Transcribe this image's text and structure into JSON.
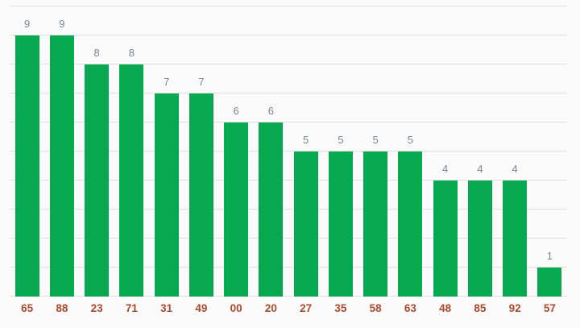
{
  "chart_data": {
    "type": "bar",
    "categories": [
      "65",
      "88",
      "23",
      "71",
      "31",
      "49",
      "00",
      "20",
      "27",
      "35",
      "58",
      "63",
      "48",
      "85",
      "92",
      "57"
    ],
    "values": [
      9,
      9,
      8,
      8,
      7,
      7,
      6,
      6,
      5,
      5,
      5,
      5,
      4,
      4,
      4,
      1
    ],
    "title": "",
    "xlabel": "",
    "ylabel": "",
    "ylim": [
      0,
      10
    ],
    "grid_step": 1,
    "grid": true,
    "legend": "none",
    "annotations": "value shown above each bar"
  },
  "style": {
    "bar_color": "#06a850",
    "value_label_color": "#76859c",
    "category_label_color": "#a84b2d",
    "gridline_color": "#e0e0e0",
    "background_color": "#fafafa"
  }
}
